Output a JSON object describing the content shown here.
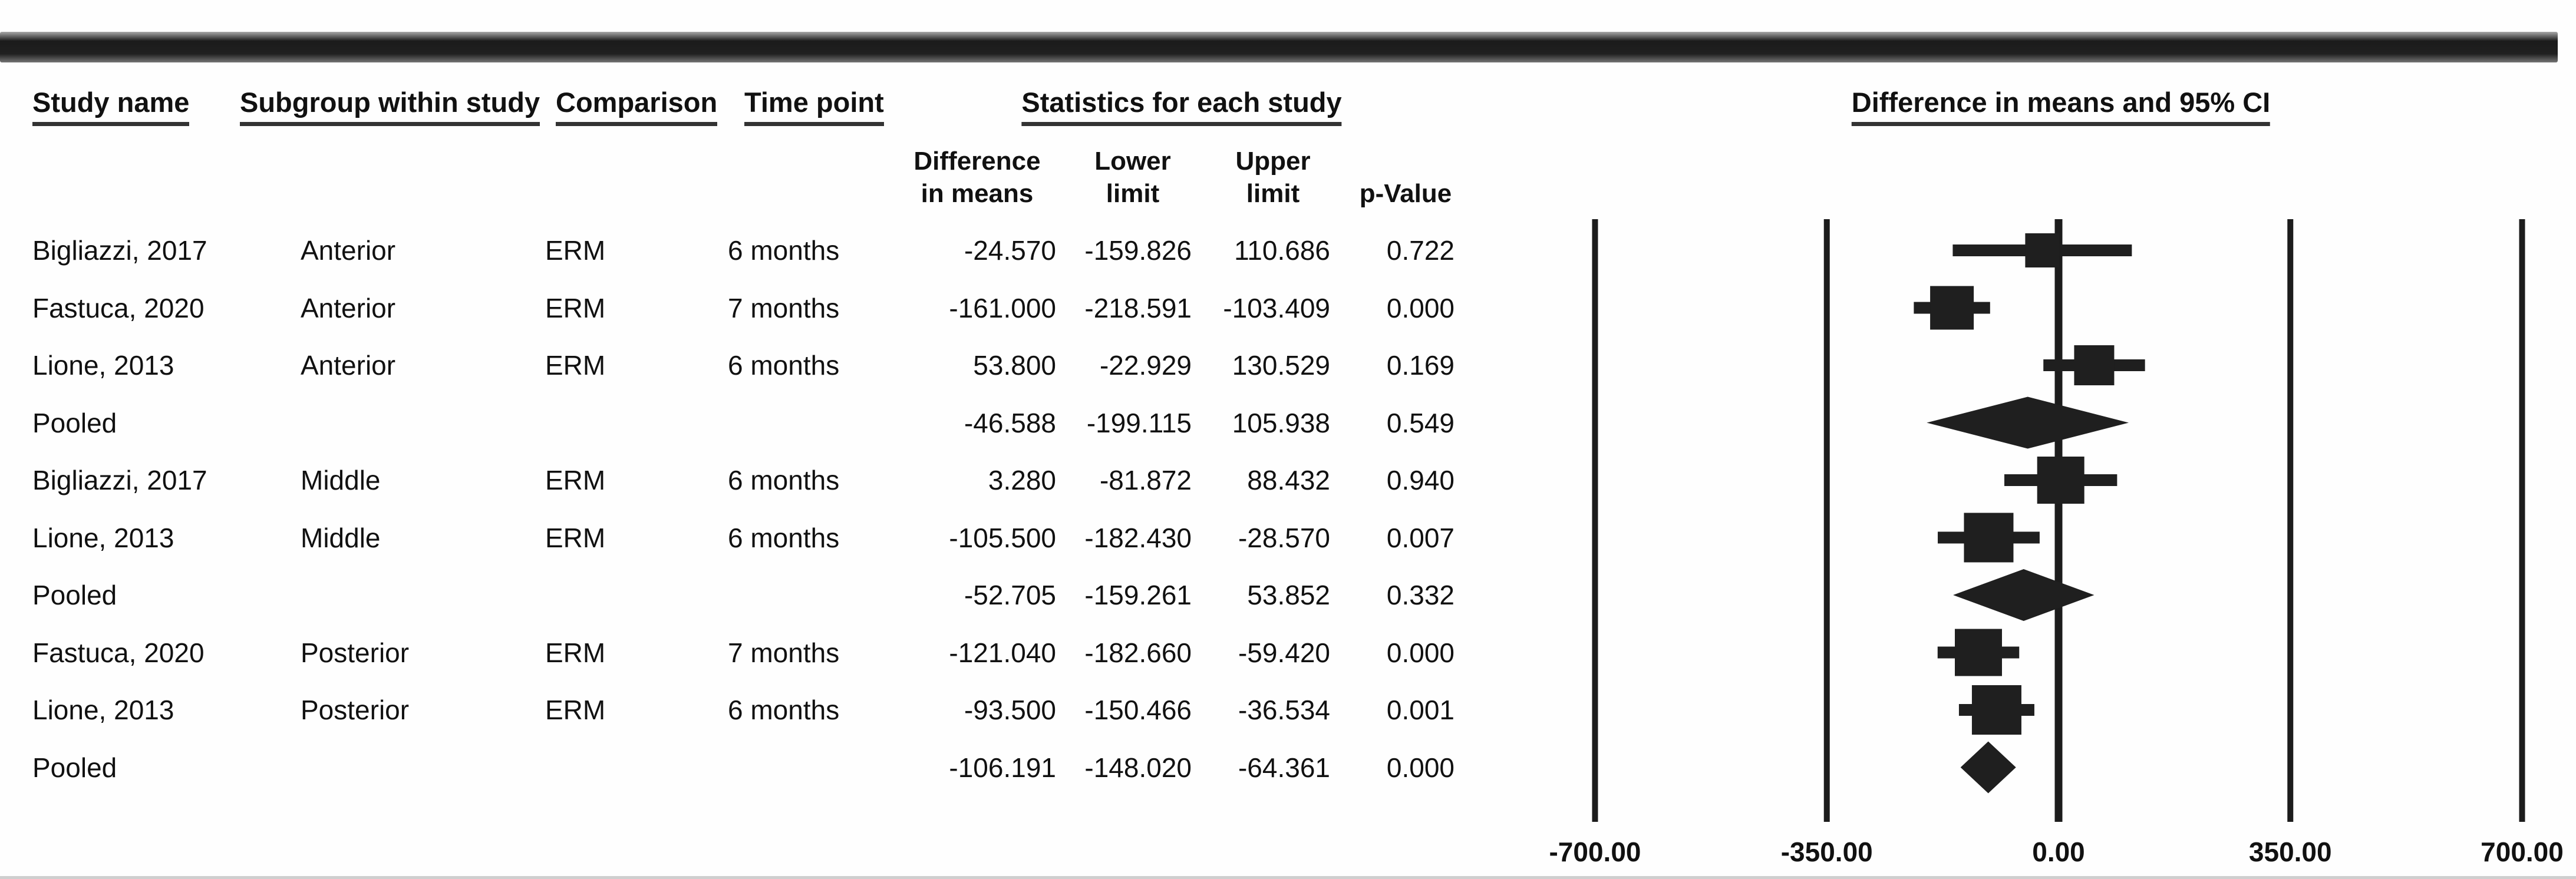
{
  "header": {
    "study_name": "Study name",
    "subgroup": "Subgroup within study",
    "comparison": "Comparison",
    "time_point": "Time point",
    "stats_group": "Statistics for each study",
    "plot_group": "Difference in means and 95% CI",
    "stat_columns": [
      {
        "label": "Difference\nin means"
      },
      {
        "label": "Lower\nlimit"
      },
      {
        "label": "Upper\nlimit"
      },
      {
        "label": "\np-Value"
      }
    ]
  },
  "chart_data": {
    "type": "forest",
    "title": "Difference in means and 95% CI",
    "xlabel": "Difference in means",
    "xlim": [
      -700,
      700
    ],
    "x_ticks": [
      -700,
      -350,
      0,
      350,
      700
    ],
    "x_tick_labels": [
      "-700.00",
      "-350.00",
      "0.00",
      "350.00",
      "700.00"
    ],
    "zero_line": 0,
    "grid": "vertical-reference-lines",
    "legend": "none",
    "rows": [
      {
        "study": "Bigliazzi, 2017",
        "subgroup": "Anterior",
        "comparison": "ERM",
        "time_point": "6 months",
        "diff": "-24.570",
        "lower": "-159.826",
        "upper": "110.686",
        "p_value": "0.722",
        "kind": "study",
        "marker_px": 58
      },
      {
        "study": "Fastuca, 2020",
        "subgroup": "Anterior",
        "comparison": "ERM",
        "time_point": "7 months",
        "diff": "-161.000",
        "lower": "-218.591",
        "upper": "-103.409",
        "p_value": "0.000",
        "kind": "study",
        "marker_px": 74
      },
      {
        "study": "Lione, 2013",
        "subgroup": "Anterior",
        "comparison": "ERM",
        "time_point": "6 months",
        "diff": "53.800",
        "lower": "-22.929",
        "upper": "130.529",
        "p_value": "0.169",
        "kind": "study",
        "marker_px": 68
      },
      {
        "study": "Pooled",
        "subgroup": "",
        "comparison": "",
        "time_point": "",
        "diff": "-46.588",
        "lower": "-199.115",
        "upper": "105.938",
        "p_value": "0.549",
        "kind": "pooled",
        "marker_px": 0
      },
      {
        "study": "Bigliazzi, 2017",
        "subgroup": "Middle",
        "comparison": "ERM",
        "time_point": "6 months",
        "diff": "3.280",
        "lower": "-81.872",
        "upper": "88.432",
        "p_value": "0.940",
        "kind": "study",
        "marker_px": 80
      },
      {
        "study": "Lione, 2013",
        "subgroup": "Middle",
        "comparison": "ERM",
        "time_point": "6 months",
        "diff": "-105.500",
        "lower": "-182.430",
        "upper": "-28.570",
        "p_value": "0.007",
        "kind": "study",
        "marker_px": 84
      },
      {
        "study": "Pooled",
        "subgroup": "",
        "comparison": "",
        "time_point": "",
        "diff": "-52.705",
        "lower": "-159.261",
        "upper": "53.852",
        "p_value": "0.332",
        "kind": "pooled",
        "marker_px": 0
      },
      {
        "study": "Fastuca, 2020",
        "subgroup": "Posterior",
        "comparison": "ERM",
        "time_point": "7 months",
        "diff": "-121.040",
        "lower": "-182.660",
        "upper": "-59.420",
        "p_value": "0.000",
        "kind": "study",
        "marker_px": 80
      },
      {
        "study": "Lione, 2013",
        "subgroup": "Posterior",
        "comparison": "ERM",
        "time_point": "6 months",
        "diff": "-93.500",
        "lower": "-150.466",
        "upper": "-36.534",
        "p_value": "0.001",
        "kind": "study",
        "marker_px": 84
      },
      {
        "study": "Pooled",
        "subgroup": "",
        "comparison": "",
        "time_point": "",
        "diff": "-106.191",
        "lower": "-148.020",
        "upper": "-64.361",
        "p_value": "0.000",
        "kind": "pooled",
        "marker_px": 0
      }
    ],
    "colors": {
      "marker": "#1f1f1f",
      "line": "#1c1c1c",
      "text": "#111111"
    }
  }
}
